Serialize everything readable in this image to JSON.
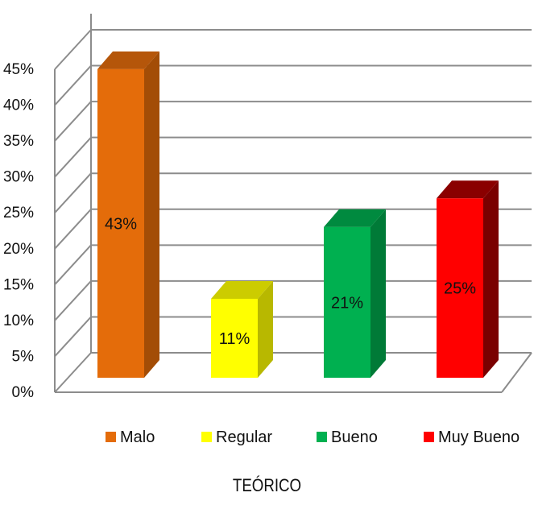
{
  "chart_data": {
    "type": "bar",
    "categories": [
      "Malo",
      "Regular",
      "Bueno",
      "Muy Bueno"
    ],
    "values": [
      43,
      11,
      21,
      25
    ],
    "data_labels": [
      "43%",
      "11%",
      "21%",
      "25%"
    ],
    "colors": [
      "#e46c0a",
      "#ffff00",
      "#00b050",
      "#ff0000"
    ],
    "side_colors": [
      "#a34d06",
      "#b8b800",
      "#007a37",
      "#7a0000"
    ],
    "top_colors": [
      "#b5560a",
      "#cccc00",
      "#008a3f",
      "#8a0000"
    ],
    "title": "",
    "xlabel": "TEÓRICO",
    "ylabel": "",
    "ylim": [
      0,
      45
    ],
    "y_ticks": [
      "0%",
      "5%",
      "10%",
      "15%",
      "20%",
      "25%",
      "30%",
      "35%",
      "40%",
      "45%"
    ],
    "grid": true,
    "legend_position": "bottom",
    "style": "3d-column"
  }
}
